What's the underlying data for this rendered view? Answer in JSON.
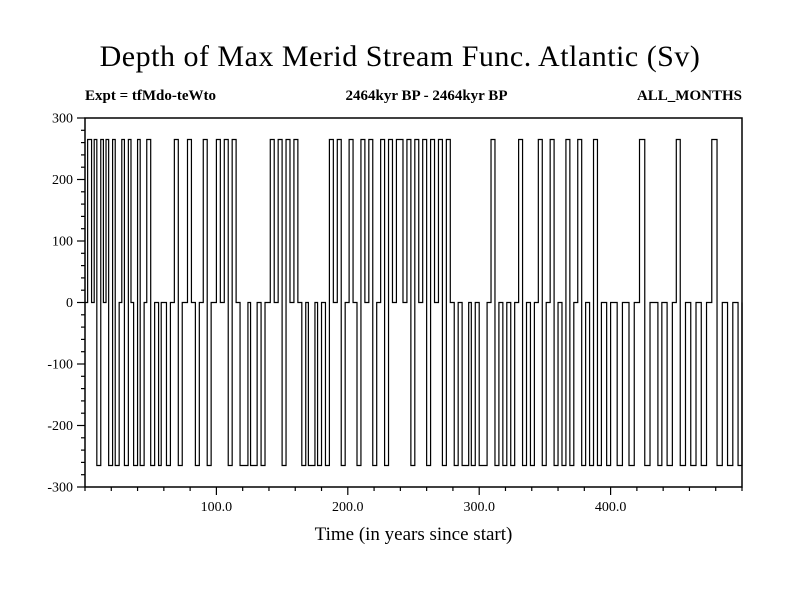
{
  "chart_data": {
    "type": "line",
    "title": "Depth of Max Merid Stream Func. Atlantic (Sv)",
    "annotations": {
      "left": "Expt = tfMdo-teWto",
      "center": "2464kyr BP - 2464kyr BP",
      "right": "ALL_MONTHS"
    },
    "xlabel": "Time (in years since start)",
    "ylabel": "",
    "xlim": [
      0,
      500
    ],
    "ylim": [
      -300,
      300
    ],
    "yticks_major": [
      -300,
      -200,
      -100,
      0,
      100,
      200,
      300
    ],
    "ytick_labels": [
      "-300",
      "-200",
      "-100",
      "0",
      "100",
      "200",
      "300"
    ],
    "xticks_major": [
      100,
      200,
      300,
      400
    ],
    "xtick_labels": [
      "100.0",
      "200.0",
      "300.0",
      "400.0"
    ],
    "minor_step_x": 20,
    "minor_step_y": 20,
    "grid": false,
    "legend": "none",
    "line_color": "#000000",
    "amplitude": 265,
    "steps_note": "step signal switching between +amplitude, 0, -amplitude; pairs of [x, level]",
    "steps": [
      [
        0,
        0
      ],
      [
        2,
        1
      ],
      [
        5,
        0
      ],
      [
        7,
        1
      ],
      [
        9,
        -1
      ],
      [
        12,
        1
      ],
      [
        14,
        0
      ],
      [
        16,
        1
      ],
      [
        18,
        -1
      ],
      [
        21,
        1
      ],
      [
        23,
        -1
      ],
      [
        26,
        0
      ],
      [
        28,
        1
      ],
      [
        30,
        -1
      ],
      [
        33,
        1
      ],
      [
        35,
        0
      ],
      [
        37,
        -1
      ],
      [
        40,
        1
      ],
      [
        42,
        -1
      ],
      [
        45,
        0
      ],
      [
        47,
        1
      ],
      [
        50,
        -1
      ],
      [
        53,
        0
      ],
      [
        56,
        -1
      ],
      [
        58,
        0
      ],
      [
        62,
        -1
      ],
      [
        65,
        0
      ],
      [
        68,
        1
      ],
      [
        71,
        -1
      ],
      [
        74,
        0
      ],
      [
        78,
        1
      ],
      [
        81,
        0
      ],
      [
        84,
        -1
      ],
      [
        87,
        0
      ],
      [
        90,
        1
      ],
      [
        93,
        -1
      ],
      [
        96,
        0
      ],
      [
        100,
        1
      ],
      [
        103,
        0
      ],
      [
        106,
        1
      ],
      [
        109,
        -1
      ],
      [
        112,
        1
      ],
      [
        115,
        0
      ],
      [
        118,
        -1
      ],
      [
        124,
        0
      ],
      [
        126,
        -1
      ],
      [
        131,
        0
      ],
      [
        134,
        -1
      ],
      [
        137,
        0
      ],
      [
        141,
        1
      ],
      [
        144,
        0
      ],
      [
        147,
        1
      ],
      [
        150,
        -1
      ],
      [
        153,
        1
      ],
      [
        156,
        0
      ],
      [
        159,
        1
      ],
      [
        162,
        0
      ],
      [
        165,
        -1
      ],
      [
        168,
        0
      ],
      [
        170,
        -1
      ],
      [
        175,
        0
      ],
      [
        177,
        -1
      ],
      [
        180,
        0
      ],
      [
        183,
        -1
      ],
      [
        186,
        1
      ],
      [
        189,
        0
      ],
      [
        192,
        1
      ],
      [
        195,
        -1
      ],
      [
        198,
        0
      ],
      [
        201,
        1
      ],
      [
        204,
        0
      ],
      [
        207,
        -1
      ],
      [
        210,
        1
      ],
      [
        213,
        0
      ],
      [
        216,
        1
      ],
      [
        219,
        -1
      ],
      [
        222,
        0
      ],
      [
        225,
        1
      ],
      [
        228,
        -1
      ],
      [
        231,
        1
      ],
      [
        234,
        0
      ],
      [
        237,
        1
      ],
      [
        242,
        0
      ],
      [
        245,
        1
      ],
      [
        248,
        -1
      ],
      [
        251,
        1
      ],
      [
        254,
        0
      ],
      [
        257,
        1
      ],
      [
        260,
        -1
      ],
      [
        263,
        1
      ],
      [
        266,
        0
      ],
      [
        269,
        1
      ],
      [
        272,
        -1
      ],
      [
        275,
        1
      ],
      [
        278,
        0
      ],
      [
        281,
        -1
      ],
      [
        284,
        0
      ],
      [
        287,
        -1
      ],
      [
        292,
        0
      ],
      [
        294,
        -1
      ],
      [
        297,
        0
      ],
      [
        300,
        -1
      ],
      [
        306,
        0
      ],
      [
        309,
        1
      ],
      [
        312,
        -1
      ],
      [
        315,
        0
      ],
      [
        318,
        -1
      ],
      [
        321,
        0
      ],
      [
        324,
        -1
      ],
      [
        327,
        0
      ],
      [
        330,
        1
      ],
      [
        333,
        -1
      ],
      [
        336,
        0
      ],
      [
        339,
        -1
      ],
      [
        342,
        0
      ],
      [
        345,
        1
      ],
      [
        348,
        -1
      ],
      [
        351,
        0
      ],
      [
        354,
        1
      ],
      [
        357,
        -1
      ],
      [
        360,
        0
      ],
      [
        363,
        -1
      ],
      [
        366,
        1
      ],
      [
        369,
        -1
      ],
      [
        372,
        0
      ],
      [
        375,
        1
      ],
      [
        378,
        -1
      ],
      [
        381,
        0
      ],
      [
        384,
        -1
      ],
      [
        387,
        1
      ],
      [
        390,
        -1
      ],
      [
        393,
        0
      ],
      [
        397,
        -1
      ],
      [
        400,
        0
      ],
      [
        405,
        -1
      ],
      [
        409,
        0
      ],
      [
        414,
        -1
      ],
      [
        418,
        0
      ],
      [
        422,
        1
      ],
      [
        426,
        -1
      ],
      [
        430,
        0
      ],
      [
        436,
        -1
      ],
      [
        439,
        0
      ],
      [
        443,
        -1
      ],
      [
        447,
        0
      ],
      [
        450,
        1
      ],
      [
        453,
        -1
      ],
      [
        457,
        0
      ],
      [
        461,
        -1
      ],
      [
        465,
        0
      ],
      [
        469,
        -1
      ],
      [
        473,
        0
      ],
      [
        477,
        1
      ],
      [
        481,
        -1
      ],
      [
        485,
        0
      ],
      [
        489,
        -1
      ],
      [
        493,
        0
      ],
      [
        497,
        -1
      ],
      [
        500,
        0
      ]
    ]
  }
}
